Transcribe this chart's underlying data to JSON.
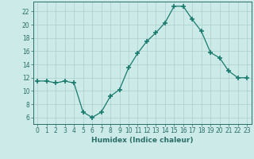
{
  "x": [
    0,
    1,
    2,
    3,
    4,
    5,
    6,
    7,
    8,
    9,
    10,
    11,
    12,
    13,
    14,
    15,
    16,
    17,
    18,
    19,
    20,
    21,
    22,
    23
  ],
  "y": [
    11.5,
    11.5,
    11.2,
    11.5,
    11.2,
    6.8,
    6.0,
    6.8,
    9.2,
    10.2,
    13.5,
    15.7,
    17.5,
    18.8,
    20.3,
    22.8,
    22.8,
    20.8,
    19.0,
    15.8,
    15.0,
    13.0,
    12.0,
    12.0
  ],
  "line_color": "#1a7a6e",
  "marker": "+",
  "marker_size": 4,
  "bg_color": "#cceae8",
  "grid_color": "#aacfcd",
  "axis_color": "#2a6e68",
  "xlabel": "Humidex (Indice chaleur)",
  "xlim": [
    -0.5,
    23.5
  ],
  "ylim": [
    5,
    23.5
  ],
  "yticks": [
    6,
    8,
    10,
    12,
    14,
    16,
    18,
    20,
    22
  ],
  "xticks": [
    0,
    1,
    2,
    3,
    4,
    5,
    6,
    7,
    8,
    9,
    10,
    11,
    12,
    13,
    14,
    15,
    16,
    17,
    18,
    19,
    20,
    21,
    22,
    23
  ],
  "xtick_labels": [
    "0",
    "1",
    "2",
    "3",
    "4",
    "5",
    "6",
    "7",
    "8",
    "9",
    "10",
    "11",
    "12",
    "13",
    "14",
    "15",
    "16",
    "17",
    "18",
    "19",
    "20",
    "21",
    "22",
    "23"
  ],
  "tick_fontsize": 5.5,
  "xlabel_fontsize": 6.5
}
